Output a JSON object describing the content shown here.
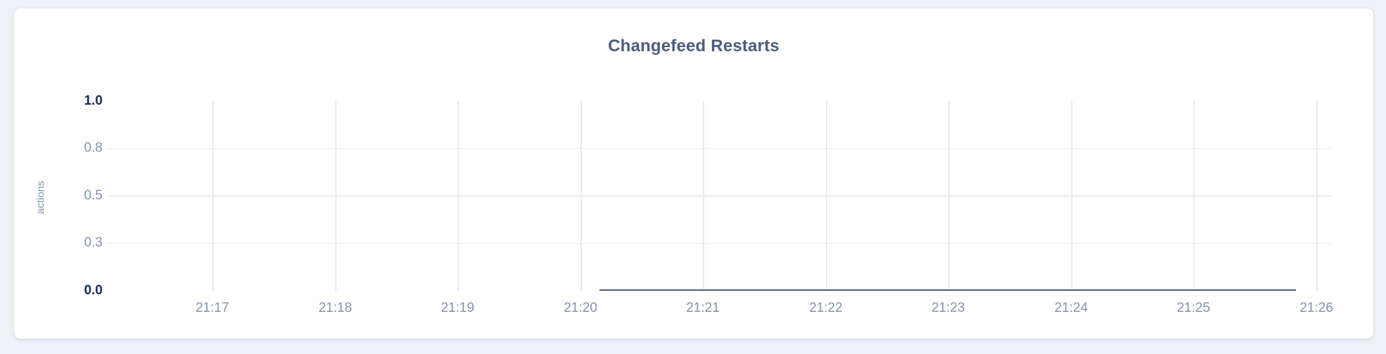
{
  "page": {
    "background_color": "#eef1f6"
  },
  "card": {
    "background_color": "#ffffff",
    "border_color": "#e2e5eb"
  },
  "chart_data": {
    "type": "line",
    "title": "Changefeed Restarts",
    "title_color": "#4d5d7a",
    "xlabel": "",
    "ylabel": "actions",
    "ylim": [
      0,
      1
    ],
    "grid": true,
    "gridline_color": "#e7eaf0",
    "legend": "none",
    "x_ticks": [
      "21:17",
      "21:18",
      "21:19",
      "21:20",
      "21:21",
      "21:22",
      "21:23",
      "21:24",
      "21:25",
      "21:26"
    ],
    "y_ticks": [
      {
        "label": "1.0",
        "value": 1.0,
        "emphasis": true
      },
      {
        "label": "0.8",
        "value": 0.75,
        "emphasis": false
      },
      {
        "label": "0.5",
        "value": 0.5,
        "emphasis": false
      },
      {
        "label": "0.3",
        "value": 0.25,
        "emphasis": false
      },
      {
        "label": "0.0",
        "value": 0.0,
        "emphasis": true
      }
    ],
    "tick_label_color": "#8492aa",
    "tick_label_emphasis_color": "#1b2c4f",
    "series": [
      {
        "name": "changefeed-restarts",
        "color": "#4e5c75",
        "constant_value": 0,
        "start_frac": 0.402,
        "end_frac": 0.971,
        "points": [
          {
            "x": "21:20:10",
            "y": 0
          },
          {
            "x": "21:25:50",
            "y": 0
          }
        ]
      }
    ]
  }
}
